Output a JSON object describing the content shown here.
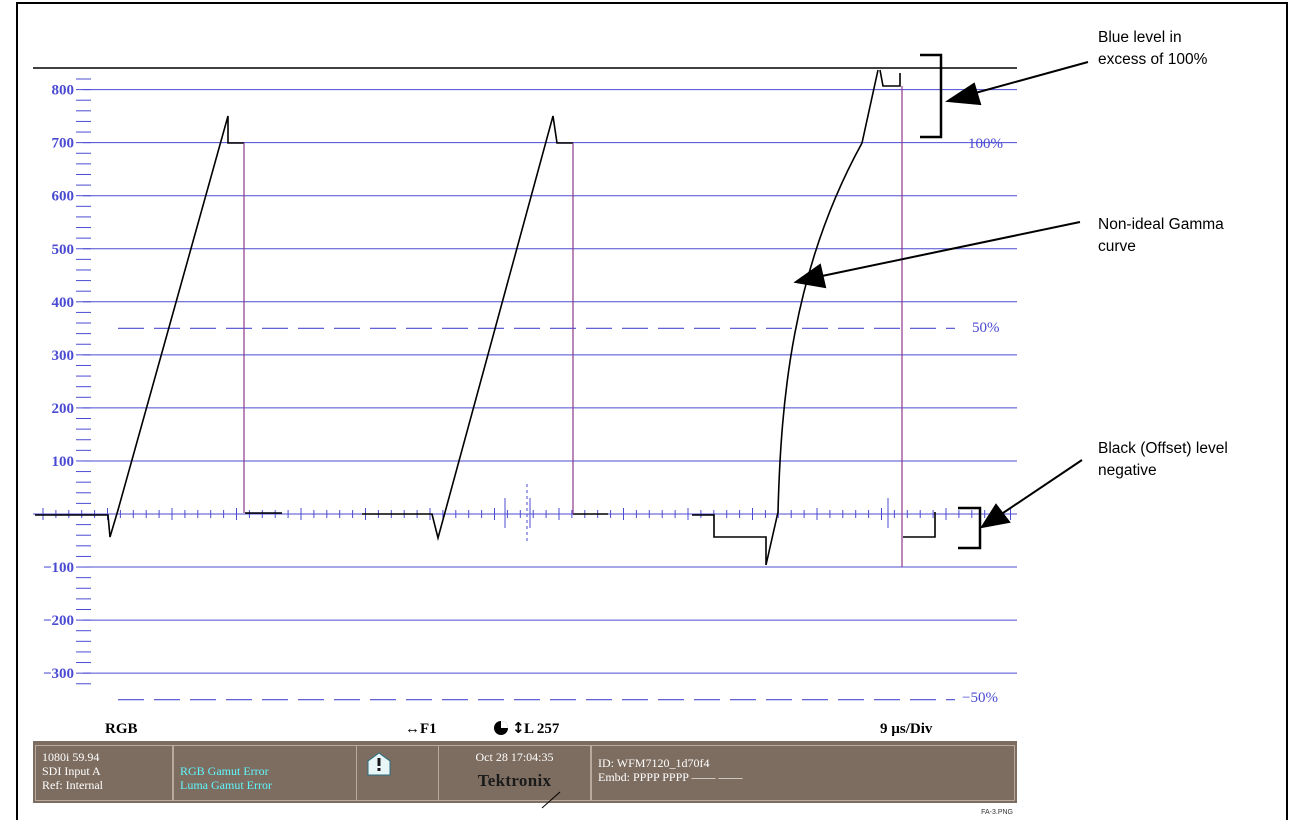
{
  "y_ticks": [
    "800",
    "700",
    "600",
    "500",
    "400",
    "300",
    "200",
    "100",
    "−100",
    "−200",
    "−300"
  ],
  "y_tick_values": [
    800,
    700,
    600,
    500,
    400,
    300,
    200,
    100,
    -100,
    -200,
    -300
  ],
  "pct_100": "100%",
  "pct_50": "50%",
  "pct_neg50": "−50%",
  "bottom_bar": {
    "mode": "RGB",
    "field": "↔F1",
    "line": "L 257",
    "timebase": "9 µs/Div"
  },
  "status": {
    "format": "1080i 59.94",
    "input": "SDI Input A",
    "ref": "Ref: Internal",
    "error1": "RGB Gamut Error",
    "error2": "Luma Gamut Error",
    "datetime": "Oct 28 17:04:35",
    "brand": "Tektronix",
    "id": "ID: WFM7120_1d70f4",
    "embd": "Embd: PPPP PPPP —— ——"
  },
  "callouts": {
    "blue": "Blue level in\nexcess of 100%",
    "gamma": "Non-ideal Gamma\ncurve",
    "black": "Black (Offset) level\nnegative"
  },
  "filename": "FA-3.PNG",
  "colors": {
    "graticule": "#4b4bd2",
    "waveform": "#000000",
    "field_line": "#8b3a8b",
    "status_bg": "#7d6d60",
    "status_text_cyan": "#5ff7ff"
  }
}
